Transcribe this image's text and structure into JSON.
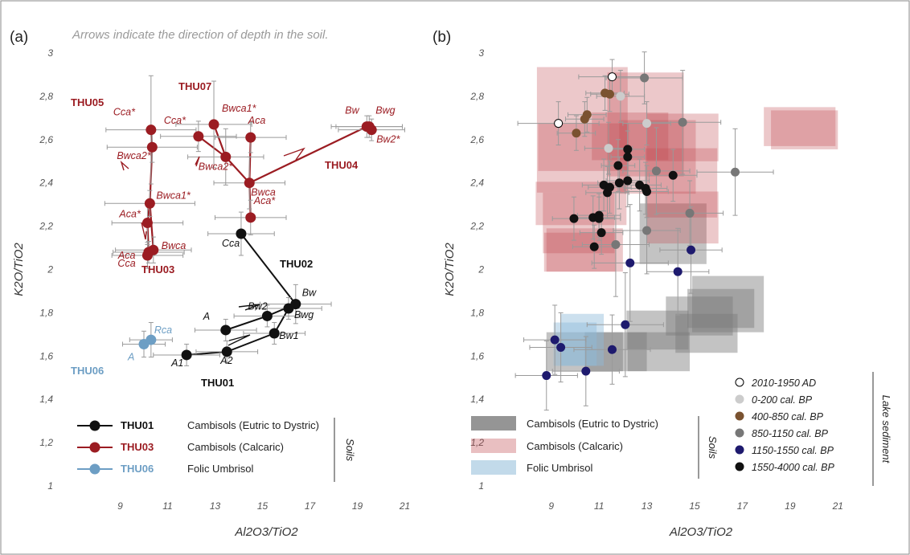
{
  "chart_data": [
    {
      "panel_label": "(a)",
      "type": "line",
      "note": "Arrows indicate the direction of depth in the soil.",
      "xlabel": "Al2O3/TiO2",
      "ylabel": "K2O/TiO2",
      "xlim": [
        8,
        22
      ],
      "ylim": [
        1,
        3
      ],
      "x_ticks": [
        9,
        11,
        13,
        15,
        17,
        19,
        21
      ],
      "y_ticks": [
        1,
        1.2,
        1.4,
        1.6,
        1.8,
        2,
        2.2,
        2.4,
        2.6,
        2.8,
        3
      ],
      "y_tick_labels": [
        "1",
        "1,2",
        "1,4",
        "1,6",
        "1,8",
        "2",
        "2,2",
        "2,4",
        "2,6",
        "2,8",
        "3"
      ],
      "x_tick_labels": [
        "9",
        "11",
        "13",
        "15",
        "17",
        "19",
        "21"
      ],
      "colors": {
        "THU01": "#111111",
        "THU03": "#9b1c22",
        "THU06": "#6d9ec4"
      },
      "series": [
        {
          "name": "THU01",
          "color_key": "THU01",
          "points": [
            {
              "label": "A1",
              "x": 11.8,
              "y": 1.605,
              "ex": 1.4,
              "ey": 0.05
            },
            {
              "label": "A2",
              "x": 13.5,
              "y": 1.62,
              "ex": 1.3,
              "ey": 0.05
            },
            {
              "label": "Bw1",
              "x": 15.5,
              "y": 1.705,
              "ex": 1.3,
              "ey": 0.05
            },
            {
              "label": "Bwg",
              "x": 16.1,
              "y": 1.82,
              "ex": 1.4,
              "ey": 0.05
            },
            {
              "label": "Bw",
              "x": 16.4,
              "y": 1.84,
              "ex": 1.5,
              "ey": 0.09
            },
            {
              "label": "Bw2",
              "x": 15.2,
              "y": 1.785,
              "ex": 1.4,
              "ey": 0.05
            },
            {
              "label": "A",
              "x": 13.45,
              "y": 1.72,
              "ex": 1.3,
              "ey": 0.05
            },
            {
              "label": "Cca",
              "x": 14.1,
              "y": 2.165,
              "ex": 1.4,
              "ey": 0.1
            }
          ],
          "lines": [
            [
              0,
              1,
              2,
              3,
              4
            ],
            [
              4,
              5,
              6
            ],
            [
              4,
              7
            ]
          ],
          "group_label": "THU01",
          "group_label_2": "THU02"
        },
        {
          "name": "THU03",
          "color_key": "THU03",
          "points": [
            {
              "label": "Cca*",
              "x": 10.3,
              "y": 2.645,
              "ex": 1.9,
              "ey": 0.25
            },
            {
              "label": "Bwca2*",
              "x": 10.35,
              "y": 2.565,
              "ex": 1.9,
              "ey": 0.07
            },
            {
              "label": "Bwca1*",
              "x": 10.25,
              "y": 2.305,
              "ex": 1.9,
              "ey": 0.06
            },
            {
              "label": "Aca*",
              "x": 10.15,
              "y": 2.215,
              "ex": 1.5,
              "ey": 0.1
            },
            {
              "label": "Aca",
              "x": 10.2,
              "y": 2.08,
              "ex": 1.5,
              "ey": 0.05
            },
            {
              "label": "Bwca",
              "x": 10.4,
              "y": 2.09,
              "ex": 1.6,
              "ey": 0.06
            },
            {
              "label": "Cca",
              "x": 10.15,
              "y": 2.065,
              "ex": 1.5,
              "ey": 0.06
            },
            {
              "label": "Cca*",
              "x": 12.3,
              "y": 2.615,
              "ex": 1.6,
              "ey": 0.07
            },
            {
              "label": "Bwca1*",
              "x": 12.95,
              "y": 2.67,
              "ex": 1.6,
              "ey": 0.2
            },
            {
              "label": "Bwca2*",
              "x": 13.45,
              "y": 2.52,
              "ex": 1.6,
              "ey": 0.13
            },
            {
              "label": "Aca",
              "x": 14.5,
              "y": 2.61,
              "ex": 1.5,
              "ey": 0.07
            },
            {
              "label": "Bwca",
              "x": 14.45,
              "y": 2.4,
              "ex": 1.5,
              "ey": 0.12
            },
            {
              "label": "Aca*",
              "x": 14.5,
              "y": 2.24,
              "ex": 1.5,
              "ey": 0.08
            },
            {
              "label": "Bw",
              "x": 19.4,
              "y": 2.66,
              "ex": 1.5,
              "ey": 0.05
            },
            {
              "label": "Bwg",
              "x": 19.5,
              "y": 2.66,
              "ex": 1.4,
              "ey": 0.05
            },
            {
              "label": "Bw2*",
              "x": 19.6,
              "y": 2.645,
              "ex": 1.4,
              "ey": 0.05
            }
          ],
          "lines": [
            [
              0,
              1,
              2,
              3,
              4
            ],
            [
              2,
              5,
              6
            ],
            [
              7,
              9,
              11
            ],
            [
              8,
              9
            ],
            [
              10,
              11,
              12
            ],
            [
              11,
              13
            ]
          ],
          "group_labels": [
            "THU05",
            "THU07",
            "THU04",
            "THU03"
          ]
        },
        {
          "name": "THU06",
          "color_key": "THU06",
          "points": [
            {
              "label": "A",
              "x": 10.0,
              "y": 1.655,
              "ex": 0.9,
              "ey": 0.06
            },
            {
              "label": "Rca",
              "x": 10.3,
              "y": 1.675,
              "ex": 0.9,
              "ey": 0.08
            }
          ],
          "lines": [
            [
              0,
              1
            ]
          ],
          "group_label": "THU06"
        }
      ],
      "legend": {
        "items": [
          {
            "code": "THU01",
            "text": "Cambisols (Eutric to Dystric)",
            "color": "#111111"
          },
          {
            "code": "THU03",
            "text": "Cambisols (Calcaric)",
            "color": "#9b1c22"
          },
          {
            "code": "THU06",
            "text": "Folic Umbrisol",
            "color": "#6d9ec4"
          }
        ],
        "side_label": "Soils",
        "placement": "bottom-left"
      }
    },
    {
      "panel_label": "(b)",
      "type": "scatter",
      "xlabel": "Al2O3/TiO2",
      "ylabel": "K2O/TiO2",
      "xlim": [
        8,
        22
      ],
      "ylim": [
        1,
        3
      ],
      "x_ticks": [
        9,
        11,
        13,
        15,
        17,
        19,
        21
      ],
      "y_ticks": [
        1,
        1.2,
        1.4,
        1.6,
        1.8,
        2,
        2.2,
        2.4,
        2.6,
        2.8,
        3
      ],
      "y_tick_labels": [
        "1",
        "1,2",
        "1,4",
        "1,6",
        "1,8",
        "2",
        "2,2",
        "2,4",
        "2,6",
        "2,8",
        "3"
      ],
      "x_tick_labels": [
        "9",
        "11",
        "13",
        "15",
        "17",
        "19",
        "21"
      ],
      "soil_boxes": [
        {
          "group": "eutric",
          "x": 10.4,
          "y": 1.62,
          "ex": 1.6,
          "ey": 0.05
        },
        {
          "group": "eutric",
          "x": 11.7,
          "y": 1.62,
          "ex": 1.3,
          "ey": 0.05
        },
        {
          "group": "eutric",
          "x": 13.5,
          "y": 1.62,
          "ex": 1.3,
          "ey": 0.05
        },
        {
          "group": "eutric",
          "x": 13.45,
          "y": 1.72,
          "ex": 1.3,
          "ey": 0.05
        },
        {
          "group": "eutric",
          "x": 15.2,
          "y": 1.785,
          "ex": 1.4,
          "ey": 0.05
        },
        {
          "group": "eutric",
          "x": 15.5,
          "y": 1.705,
          "ex": 1.3,
          "ey": 0.05
        },
        {
          "group": "eutric",
          "x": 16.1,
          "y": 1.82,
          "ex": 1.4,
          "ey": 0.05
        },
        {
          "group": "eutric",
          "x": 16.4,
          "y": 1.84,
          "ex": 1.5,
          "ey": 0.09
        },
        {
          "group": "eutric",
          "x": 14.1,
          "y": 2.165,
          "ex": 1.4,
          "ey": 0.1
        },
        {
          "group": "calcaric",
          "x": 10.3,
          "y": 2.645,
          "ex": 1.9,
          "ey": 0.25
        },
        {
          "group": "calcaric",
          "x": 10.35,
          "y": 2.565,
          "ex": 1.9,
          "ey": 0.07
        },
        {
          "group": "calcaric",
          "x": 10.25,
          "y": 2.305,
          "ex": 1.9,
          "ey": 0.06
        },
        {
          "group": "calcaric",
          "x": 10.15,
          "y": 2.215,
          "ex": 1.5,
          "ey": 0.1
        },
        {
          "group": "calcaric",
          "x": 10.2,
          "y": 2.08,
          "ex": 1.5,
          "ey": 0.05
        },
        {
          "group": "calcaric",
          "x": 10.4,
          "y": 2.09,
          "ex": 1.6,
          "ey": 0.06
        },
        {
          "group": "calcaric",
          "x": 12.3,
          "y": 2.615,
          "ex": 1.6,
          "ey": 0.07
        },
        {
          "group": "calcaric",
          "x": 12.95,
          "y": 2.67,
          "ex": 1.6,
          "ey": 0.2
        },
        {
          "group": "calcaric",
          "x": 13.45,
          "y": 2.52,
          "ex": 1.6,
          "ey": 0.13
        },
        {
          "group": "calcaric",
          "x": 14.5,
          "y": 2.61,
          "ex": 1.5,
          "ey": 0.07
        },
        {
          "group": "calcaric",
          "x": 14.45,
          "y": 2.4,
          "ex": 1.5,
          "ey": 0.12
        },
        {
          "group": "calcaric",
          "x": 14.5,
          "y": 2.24,
          "ex": 1.5,
          "ey": 0.08
        },
        {
          "group": "calcaric",
          "x": 19.4,
          "y": 2.66,
          "ex": 1.5,
          "ey": 0.05
        },
        {
          "group": "calcaric",
          "x": 19.6,
          "y": 2.645,
          "ex": 1.4,
          "ey": 0.05
        },
        {
          "group": "folic",
          "x": 10.0,
          "y": 1.655,
          "ex": 0.9,
          "ey": 0.06
        },
        {
          "group": "folic",
          "x": 10.3,
          "y": 1.675,
          "ex": 0.9,
          "ey": 0.08
        }
      ],
      "soil_colors": {
        "eutric": "#7a7a7a",
        "calcaric": "#c0484e",
        "folic": "#8fbbd9"
      },
      "sediment_groups": [
        {
          "name": "2010-1950 AD",
          "fill": "#ffffff",
          "stroke": "#000000",
          "points": [
            {
              "x": 11.55,
              "y": 2.89,
              "ex": 1.4,
              "ey": 0.08
            },
            {
              "x": 9.3,
              "y": 2.675,
              "ex": 1.7,
              "ey": 0.1
            }
          ]
        },
        {
          "name": "0-200 cal. BP",
          "fill": "#cccccc",
          "stroke": "#cccccc",
          "points": [
            {
              "x": 11.9,
              "y": 2.8,
              "ex": 1.0,
              "ey": 0.12
            },
            {
              "x": 13.0,
              "y": 2.675,
              "ex": 1.0,
              "ey": 0.1
            },
            {
              "x": 11.4,
              "y": 2.56,
              "ex": 1.0,
              "ey": 0.12
            }
          ]
        },
        {
          "name": "400-850 cal. BP",
          "fill": "#7a5230",
          "stroke": "#7a5230",
          "points": [
            {
              "x": 10.5,
              "y": 2.715,
              "ex": 0.8,
              "ey": 0.08
            },
            {
              "x": 10.4,
              "y": 2.695,
              "ex": 0.8,
              "ey": 0.08
            },
            {
              "x": 10.05,
              "y": 2.63,
              "ex": 0.8,
              "ey": 0.08
            },
            {
              "x": 11.25,
              "y": 2.815,
              "ex": 0.8,
              "ey": 0.08
            },
            {
              "x": 11.45,
              "y": 2.81,
              "ex": 0.8,
              "ey": 0.08
            }
          ]
        },
        {
          "name": "850-1150 cal. BP",
          "fill": "#777777",
          "stroke": "#777777",
          "points": [
            {
              "x": 12.9,
              "y": 2.885,
              "ex": 1.6,
              "ey": 0.12
            },
            {
              "x": 14.5,
              "y": 2.68,
              "ex": 1.6,
              "ey": 0.24
            },
            {
              "x": 16.7,
              "y": 2.45,
              "ex": 1.6,
              "ey": 0.2
            },
            {
              "x": 13.4,
              "y": 2.455,
              "ex": 1.4,
              "ey": 0.2
            },
            {
              "x": 13.0,
              "y": 2.18,
              "ex": 1.4,
              "ey": 0.2
            },
            {
              "x": 14.8,
              "y": 2.26,
              "ex": 1.4,
              "ey": 0.15
            },
            {
              "x": 11.7,
              "y": 2.115,
              "ex": 1.4,
              "ey": 0.24
            }
          ]
        },
        {
          "name": "1150-1550 cal. BP",
          "fill": "#1e1a6e",
          "stroke": "#1e1a6e",
          "points": [
            {
              "x": 12.3,
              "y": 2.03,
              "ex": 1.6,
              "ey": 0.27
            },
            {
              "x": 14.85,
              "y": 2.09,
              "ex": 1.3,
              "ey": 0.2
            },
            {
              "x": 14.3,
              "y": 1.99,
              "ex": 1.3,
              "ey": 0.2
            },
            {
              "x": 12.1,
              "y": 1.745,
              "ex": 1.6,
              "ey": 0.24
            },
            {
              "x": 9.15,
              "y": 1.675,
              "ex": 1.3,
              "ey": 0.16
            },
            {
              "x": 9.4,
              "y": 1.64,
              "ex": 1.3,
              "ey": 0.16
            },
            {
              "x": 11.55,
              "y": 1.63,
              "ex": 1.6,
              "ey": 0.16
            },
            {
              "x": 10.45,
              "y": 1.53,
              "ex": 1.4,
              "ey": 0.16
            },
            {
              "x": 8.8,
              "y": 1.51,
              "ex": 1.3,
              "ey": 0.16
            }
          ]
        },
        {
          "name": "1550-4000 cal. BP",
          "fill": "#111111",
          "stroke": "#111111",
          "points": [
            {
              "x": 12.2,
              "y": 2.555,
              "ex": 0.7,
              "ey": 0.12
            },
            {
              "x": 12.2,
              "y": 2.52,
              "ex": 0.7,
              "ey": 0.12
            },
            {
              "x": 11.8,
              "y": 2.48,
              "ex": 0.7,
              "ey": 0.12
            },
            {
              "x": 12.2,
              "y": 2.41,
              "ex": 0.9,
              "ey": 0.12
            },
            {
              "x": 11.85,
              "y": 2.4,
              "ex": 0.9,
              "ey": 0.12
            },
            {
              "x": 11.2,
              "y": 2.39,
              "ex": 0.9,
              "ey": 0.12
            },
            {
              "x": 11.35,
              "y": 2.355,
              "ex": 0.9,
              "ey": 0.12
            },
            {
              "x": 11.45,
              "y": 2.38,
              "ex": 0.9,
              "ey": 0.12
            },
            {
              "x": 12.7,
              "y": 2.39,
              "ex": 0.9,
              "ey": 0.12
            },
            {
              "x": 12.95,
              "y": 2.375,
              "ex": 0.9,
              "ey": 0.12
            },
            {
              "x": 13.0,
              "y": 2.36,
              "ex": 0.9,
              "ey": 0.12
            },
            {
              "x": 14.1,
              "y": 2.435,
              "ex": 1.0,
              "ey": 0.12
            },
            {
              "x": 9.95,
              "y": 2.235,
              "ex": 0.9,
              "ey": 0.1
            },
            {
              "x": 10.75,
              "y": 2.24,
              "ex": 0.9,
              "ey": 0.1
            },
            {
              "x": 11.0,
              "y": 2.25,
              "ex": 0.9,
              "ey": 0.1
            },
            {
              "x": 11.0,
              "y": 2.235,
              "ex": 0.9,
              "ey": 0.1
            },
            {
              "x": 11.1,
              "y": 2.17,
              "ex": 0.9,
              "ey": 0.1
            },
            {
              "x": 10.8,
              "y": 2.105,
              "ex": 0.9,
              "ey": 0.1
            }
          ]
        }
      ],
      "legend": {
        "soil_items": [
          {
            "text": "Cambisols (Eutric to Dystric)",
            "color": "#7a7a7a"
          },
          {
            "text": "Cambisols (Calcaric)",
            "color": "#c0484e"
          },
          {
            "text": "Folic Umbrisol",
            "color": "#8fbbd9"
          }
        ],
        "soil_side_label": "Soils",
        "sediment_items": [
          "2010-1950 AD",
          "0-200 cal. BP",
          "400-850 cal. BP",
          "850-1150 cal. BP",
          "1150-1550 cal. BP",
          "1550-4000 cal. BP"
        ],
        "sediment_side_label": "Lake sediment",
        "placement": "bottom"
      }
    }
  ]
}
